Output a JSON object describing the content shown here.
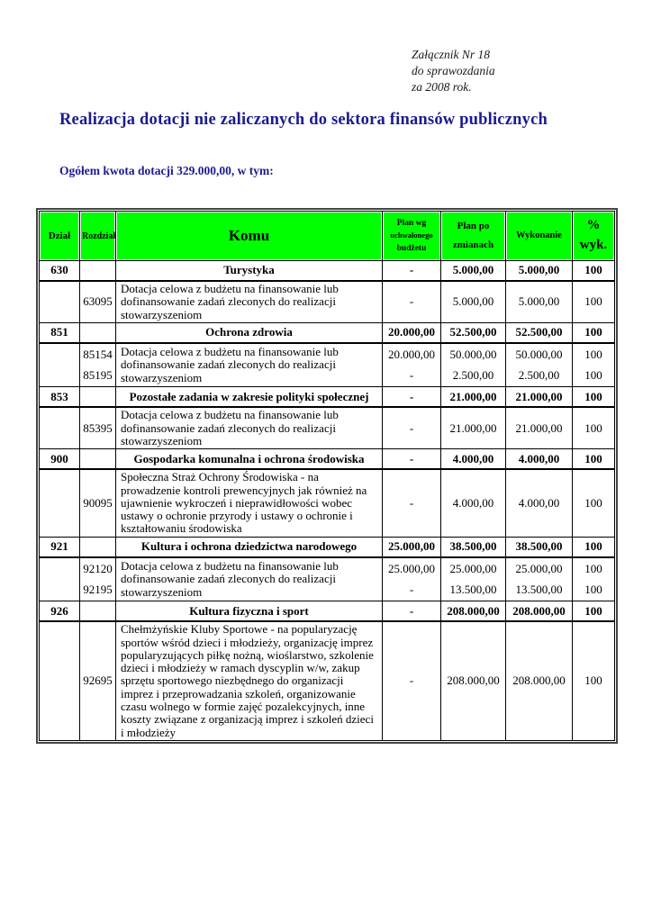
{
  "annex": {
    "lines": [
      "Załącznik Nr 18",
      "do sprawozdania",
      "za 2008 rok."
    ]
  },
  "title": "Realizacja dotacji nie zaliczanych do sektora finansów publicznych",
  "subtitle": "Ogółem kwota dotacji 329.000,00, w tym:",
  "colors": {
    "header_bg": "#00ff00",
    "title_text": "#1b1b8f",
    "table_border": "#000000"
  },
  "table": {
    "headers": {
      "dzial": "Dział",
      "rozdzial": "Rozdział",
      "komu": "Komu",
      "plan_wg": [
        "Plan wg",
        "uchwalonego",
        "budżetu"
      ],
      "plan_po": [
        "Plan po",
        "zmianach"
      ],
      "wykonanie": "Wykonanie",
      "wyk": [
        "%",
        "wyk."
      ]
    },
    "rows": [
      {
        "dzial": "630",
        "rozdzial": "",
        "komu": "Turystyka",
        "plan_wg": "-",
        "plan_po": "5.000,00",
        "wykonanie": "5.000,00",
        "wyk": "100"
      },
      {
        "dzial": "",
        "rozdzial": "63095",
        "komu": "Dotacja celowa z budżetu na finansowanie lub dofinansowanie zadań zleconych do realizacji stowarzyszeniom",
        "plan_wg": "-",
        "plan_po": "5.000,00",
        "wykonanie": "5.000,00",
        "wyk": "100"
      },
      {
        "dzial": "851",
        "rozdzial": "",
        "komu": "Ochrona zdrowia",
        "plan_wg": "20.000,00",
        "plan_po": "52.500,00",
        "wykonanie": "52.500,00",
        "wyk": "100"
      },
      {
        "dzial": "",
        "rozdzial": [
          "85154",
          "85195"
        ],
        "komu": "Dotacja celowa z budżetu na finansowanie lub dofinansowanie zadań zleconych do realizacji stowarzyszeniom",
        "plan_wg": [
          "20.000,00",
          "-"
        ],
        "plan_po": [
          "50.000,00",
          "2.500,00"
        ],
        "wykonanie": [
          "50.000,00",
          "2.500,00"
        ],
        "wyk": [
          "100",
          "100"
        ]
      },
      {
        "dzial": "853",
        "rozdzial": "",
        "komu": "Pozostałe zadania w zakresie polityki społecznej",
        "plan_wg": "-",
        "plan_po": "21.000,00",
        "wykonanie": "21.000,00",
        "wyk": "100"
      },
      {
        "dzial": "",
        "rozdzial": "85395",
        "komu": "Dotacja celowa z budżetu na finansowanie lub dofinansowanie zadań zleconych do realizacji stowarzyszeniom",
        "plan_wg": "-",
        "plan_po": "21.000,00",
        "wykonanie": "21.000,00",
        "wyk": "100"
      },
      {
        "dzial": "900",
        "rozdzial": "",
        "komu": "Gospodarka komunalna i ochrona środowiska",
        "plan_wg": "-",
        "plan_po": "4.000,00",
        "wykonanie": "4.000,00",
        "wyk": "100"
      },
      {
        "dzial": "",
        "rozdzial": "90095",
        "komu": "Społeczna Straż Ochrony Środowiska - na prowadzenie kontroli prewencyjnych jak również na ujawnienie wykroczeń i nieprawidłowości wobec ustawy o ochronie przyrody i ustawy o ochronie i kształtowaniu środowiska",
        "plan_wg": "-",
        "plan_po": "4.000,00",
        "wykonanie": "4.000,00",
        "wyk": "100"
      },
      {
        "dzial": "921",
        "rozdzial": "",
        "komu": "Kultura i ochrona dziedzictwa narodowego",
        "plan_wg": "25.000,00",
        "plan_po": "38.500,00",
        "wykonanie": "38.500,00",
        "wyk": "100"
      },
      {
        "dzial": "",
        "rozdzial": [
          "92120",
          "92195"
        ],
        "komu": "Dotacja celowa z budżetu na finansowanie lub dofinansowanie zadań zleconych do realizacji stowarzyszeniom",
        "plan_wg": [
          "25.000,00",
          "-"
        ],
        "plan_po": [
          "25.000,00",
          "13.500,00"
        ],
        "wykonanie": [
          "25.000,00",
          "13.500,00"
        ],
        "wyk": [
          "100",
          "100"
        ]
      },
      {
        "dzial": "926",
        "rozdzial": "",
        "komu": "Kultura fizyczna i sport",
        "plan_wg": "-",
        "plan_po": "208.000,00",
        "wykonanie": "208.000,00",
        "wyk": "100"
      },
      {
        "dzial": "",
        "rozdzial": "92695",
        "komu": "Chełmżyńskie Kluby Sportowe - na popularyzację sportów wśród dzieci i młodzieży, organizację imprez popularyzujących piłkę nożną, wioślarstwo, szkolenie dzieci i młodzieży w ramach dyscyplin w/w, zakup sprzętu sportowego niezbędnego do organizacji imprez i przeprowadzania szkoleń, organizowanie czasu wolnego w formie zajęć pozalekcyjnych, inne koszty związane z organizacją imprez i szkoleń dzieci i młodzieży",
        "plan_wg": "-",
        "plan_po": "208.000,00",
        "wykonanie": "208.000,00",
        "wyk": "100"
      }
    ]
  }
}
